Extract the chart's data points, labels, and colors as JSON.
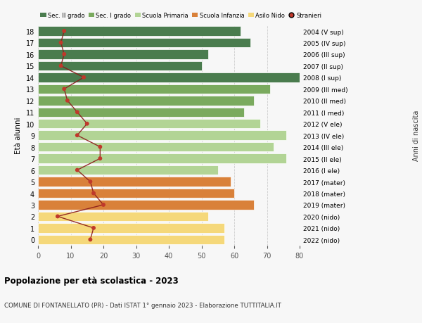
{
  "ages": [
    18,
    17,
    16,
    15,
    14,
    13,
    12,
    11,
    10,
    9,
    8,
    7,
    6,
    5,
    4,
    3,
    2,
    1,
    0
  ],
  "right_labels": [
    "2004 (V sup)",
    "2005 (IV sup)",
    "2006 (III sup)",
    "2007 (II sup)",
    "2008 (I sup)",
    "2009 (III med)",
    "2010 (II med)",
    "2011 (I med)",
    "2012 (V ele)",
    "2013 (IV ele)",
    "2014 (III ele)",
    "2015 (II ele)",
    "2016 (I ele)",
    "2017 (mater)",
    "2018 (mater)",
    "2019 (mater)",
    "2020 (nido)",
    "2021 (nido)",
    "2022 (nido)"
  ],
  "bar_values": [
    62,
    65,
    52,
    50,
    80,
    71,
    66,
    63,
    68,
    76,
    72,
    76,
    55,
    59,
    60,
    66,
    52,
    57,
    57
  ],
  "bar_colors": [
    "#4a7c4e",
    "#4a7c4e",
    "#4a7c4e",
    "#4a7c4e",
    "#4a7c4e",
    "#7aaa5e",
    "#7aaa5e",
    "#7aaa5e",
    "#b2d495",
    "#b2d495",
    "#b2d495",
    "#b2d495",
    "#b2d495",
    "#d9813a",
    "#d9813a",
    "#d9813a",
    "#f5d87a",
    "#f5d87a",
    "#f5d87a"
  ],
  "stranieri_values": [
    8,
    7,
    8,
    7,
    14,
    8,
    9,
    12,
    15,
    12,
    19,
    19,
    12,
    16,
    17,
    20,
    6,
    17,
    16
  ],
  "legend_labels": [
    "Sec. II grado",
    "Sec. I grado",
    "Scuola Primaria",
    "Scuola Infanzia",
    "Asilo Nido",
    "Stranieri"
  ],
  "legend_colors": [
    "#4a7c4e",
    "#7aaa5e",
    "#b2d495",
    "#d9813a",
    "#f5d87a",
    "#c0392b"
  ],
  "stranieri_line_color": "#8b1a1a",
  "stranieri_marker_color": "#c0392b",
  "ylabel_left": "Età alunni",
  "ylabel_right": "Anni di nascita",
  "title_bold": "Popolazione per età scolastica - 2023",
  "subtitle": "COMUNE DI FONTANELLATO (PR) - Dati ISTAT 1° gennaio 2023 - Elaborazione TUTTITALIA.IT",
  "xlim": [
    0,
    80
  ],
  "xticks": [
    0,
    10,
    20,
    30,
    40,
    50,
    60,
    70,
    80
  ],
  "bg_color": "#f7f7f7",
  "bar_height": 0.82
}
